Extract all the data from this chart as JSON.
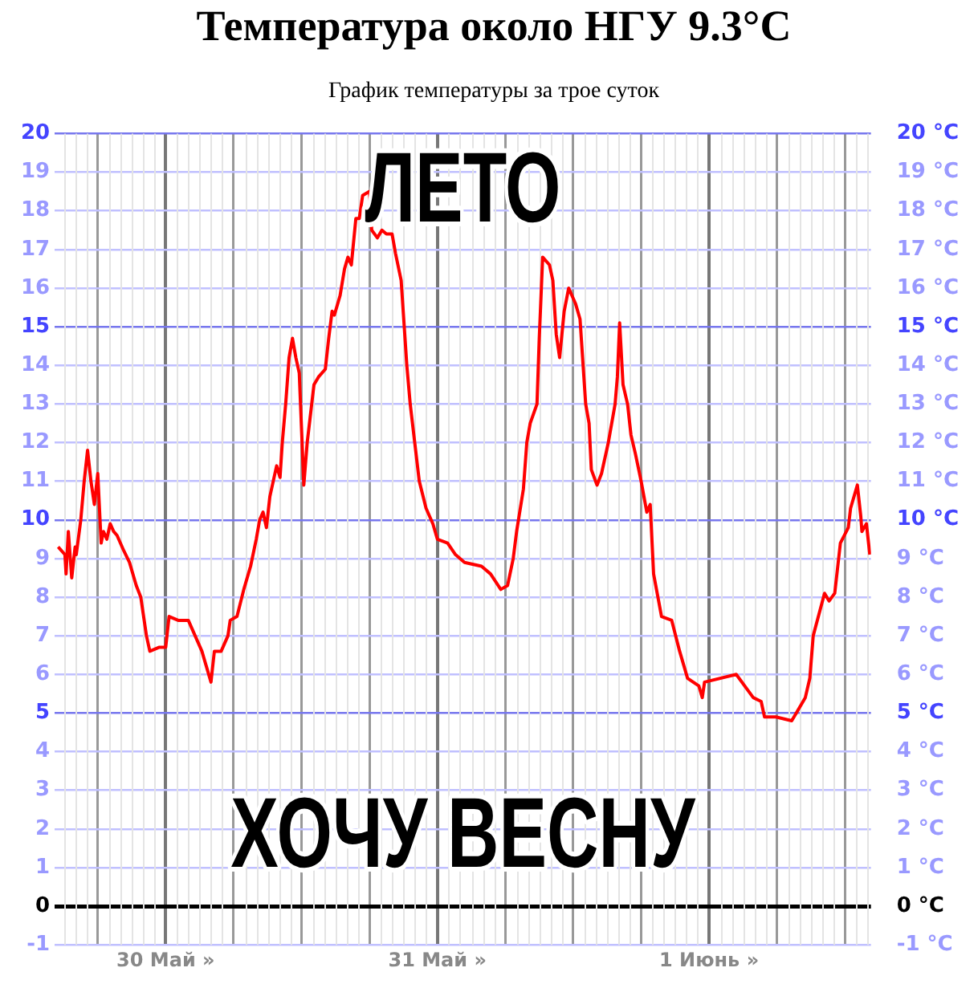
{
  "chart_data": {
    "type": "line",
    "title": "Температура около НГУ 9.3°C",
    "subtitle": "График температуры за трое суток",
    "annotations": [
      "ЛЕТО",
      "ХОЧУ ВЕСНУ"
    ],
    "x": [
      "--05-29T14:30",
      "--05-29T15:06",
      "--05-29T15:12",
      "--05-29T15:24",
      "--05-29T15:42",
      "--05-29T16:00",
      "--05-29T16:06",
      "--05-29T16:30",
      "--05-29T16:48",
      "--05-29T17:06",
      "--05-29T17:24",
      "--05-29T17:42",
      "--05-29T18:00",
      "--05-29T18:18",
      "--05-29T18:30",
      "--05-29T18:48",
      "--05-29T19:06",
      "--05-29T19:24",
      "--05-29T19:42",
      "--05-29T20:18",
      "--05-29T20:48",
      "--05-29T21:24",
      "--05-29T21:48",
      "--05-29T22:18",
      "--05-29T22:36",
      "--05-29T23:24",
      "--05-30T00:00",
      "--05-30T00:18",
      "--05-30T01:06",
      "--05-30T02:00",
      "--05-30T02:36",
      "--05-30T03:12",
      "--05-30T03:36",
      "--05-30T04:00",
      "--05-30T04:18",
      "--05-30T04:54",
      "--05-30T05:30",
      "--05-30T05:42",
      "--05-30T06:18",
      "--05-30T06:54",
      "--05-30T07:30",
      "--05-30T08:00",
      "--05-30T08:18",
      "--05-30T08:36",
      "--05-30T08:54",
      "--05-30T09:12",
      "--05-30T09:48",
      "--05-30T10:06",
      "--05-30T10:18",
      "--05-30T10:36",
      "--05-30T10:54",
      "--05-30T11:12",
      "--05-30T11:30",
      "--05-30T11:48",
      "--05-30T12:12",
      "--05-30T12:30",
      "--05-30T12:54",
      "--05-30T13:06",
      "--05-30T13:30",
      "--05-30T14:06",
      "--05-30T14:24",
      "--05-30T14:42",
      "--05-30T14:54",
      "--05-30T15:24",
      "--05-30T15:48",
      "--05-30T16:06",
      "--05-30T16:24",
      "--05-30T16:48",
      "--05-30T17:06",
      "--05-30T17:24",
      "--05-30T18:00",
      "--05-30T18:12",
      "--05-30T18:42",
      "--05-30T19:06",
      "--05-30T19:30",
      "--05-30T20:00",
      "--05-30T20:18",
      "--05-30T20:48",
      "--05-30T21:18",
      "--05-30T21:36",
      "--05-30T22:00",
      "--05-30T22:24",
      "--05-30T23:00",
      "--05-30T23:36",
      "--05-31T00:00",
      "--05-31T00:54",
      "--05-31T01:36",
      "--05-31T02:24",
      "--05-31T03:54",
      "--05-31T04:42",
      "--05-31T05:36",
      "--05-31T06:12",
      "--05-31T06:42",
      "--05-31T07:00",
      "--05-31T07:36",
      "--05-31T07:54",
      "--05-31T08:12",
      "--05-31T08:48",
      "--05-31T09:00",
      "--05-31T09:18",
      "--05-31T09:54",
      "--05-31T10:12",
      "--05-31T10:30",
      "--05-31T10:48",
      "--05-31T11:12",
      "--05-31T11:36",
      "--05-31T12:12",
      "--05-31T12:36",
      "--05-31T13:06",
      "--05-31T13:24",
      "--05-31T13:36",
      "--05-31T14:06",
      "--05-31T14:30",
      "--05-31T15:06",
      "--05-31T15:42",
      "--05-31T15:54",
      "--05-31T16:06",
      "--05-31T16:24",
      "--05-31T16:48",
      "--05-31T17:06",
      "--05-31T17:30",
      "--05-31T18:00",
      "--05-31T18:30",
      "--05-31T18:48",
      "--05-31T19:06",
      "--05-31T19:48",
      "--05-31T20:42",
      "--05-31T21:24",
      "--05-31T22:06",
      "--05-31T23:06",
      "--05-31T23:24",
      "--05-31T23:36",
      "--06-01T02:24",
      "--06-01T03:54",
      "--06-01T04:36",
      "--06-01T04:54",
      "--06-01T05:54",
      "--06-01T07:18",
      "--06-01T07:42",
      "--06-01T08:30",
      "--06-01T08:54",
      "--06-01T09:12",
      "--06-01T10:12",
      "--06-01T10:36",
      "--06-01T11:06",
      "--06-01T11:36",
      "--06-01T12:18",
      "--06-01T12:30",
      "--06-01T13:06",
      "--06-01T13:24",
      "--06-01T13:30",
      "--06-01T13:54",
      "--06-01T14:12"
    ],
    "series": [
      {
        "color": "#ff0000",
        "values": [
          9.3,
          9.1,
          8.6,
          9.7,
          8.5,
          9.3,
          9.1,
          10.0,
          11.0,
          11.8,
          11.0,
          10.4,
          11.2,
          9.4,
          9.7,
          9.5,
          9.9,
          9.7,
          9.6,
          9.2,
          8.9,
          8.3,
          8.0,
          7.0,
          6.6,
          6.7,
          6.7,
          7.5,
          7.4,
          7.4,
          7.0,
          6.6,
          6.2,
          5.8,
          6.6,
          6.6,
          7.0,
          7.4,
          7.5,
          8.2,
          8.8,
          9.5,
          10.0,
          10.2,
          9.8,
          10.6,
          11.4,
          11.1,
          12.0,
          13.0,
          14.2,
          14.7,
          14.2,
          13.8,
          10.9,
          12.0,
          13.0,
          13.5,
          13.7,
          13.9,
          14.7,
          15.4,
          15.3,
          15.8,
          16.5,
          16.8,
          16.6,
          17.8,
          17.8,
          18.4,
          18.5,
          17.5,
          17.3,
          17.5,
          17.4,
          17.4,
          16.9,
          16.2,
          14.0,
          13.0,
          12.0,
          11.0,
          10.3,
          9.9,
          9.5,
          9.4,
          9.1,
          8.9,
          8.8,
          8.6,
          8.2,
          8.3,
          9.0,
          9.7,
          10.8,
          12.0,
          12.5,
          13.0,
          14.7,
          16.8,
          16.6,
          16.2,
          14.8,
          14.2,
          15.4,
          16.0,
          15.6,
          15.2,
          13.0,
          12.5,
          11.3,
          10.9,
          11.2,
          12.0,
          13.0,
          13.7,
          15.1,
          13.5,
          13.0,
          12.2,
          11.7,
          11.0,
          10.2,
          10.4,
          8.6,
          7.5,
          7.4,
          6.6,
          5.9,
          5.7,
          5.4,
          5.8,
          6.0,
          5.4,
          5.3,
          4.9,
          4.9,
          4.8,
          5.0,
          5.4,
          5.9,
          7.0,
          8.1,
          7.9,
          8.1,
          9.4,
          9.8,
          10.3,
          10.9,
          10.1,
          9.7,
          9.9,
          9.1
        ]
      }
    ],
    "xlim": [
      "--05-29T14:12",
      "--06-01T14:18"
    ],
    "xticks": [
      {
        "value": "--05-29T18:00",
        "label": null
      },
      {
        "value": "--05-30",
        "label": "30 Май »"
      },
      {
        "value": "--05-30T06:00",
        "label": null
      },
      {
        "value": "--05-30T12:00",
        "label": null
      },
      {
        "value": "--05-30T18:00",
        "label": null
      },
      {
        "value": "--05-31",
        "label": "31 Май »"
      },
      {
        "value": "--05-31T06:00",
        "label": null
      },
      {
        "value": "--05-31T12:00",
        "label": null
      },
      {
        "value": "--05-31T18:00",
        "label": null
      },
      {
        "value": "--06-01",
        "label": "1 Июнь »"
      },
      {
        "value": "--06-01T06:00",
        "label": null
      },
      {
        "value": "--06-01T12:00",
        "label": null
      }
    ],
    "ylim": [
      -1,
      20
    ],
    "yticks": [
      -1,
      0,
      1,
      2,
      3,
      4,
      5,
      6,
      7,
      8,
      9,
      10,
      11,
      12,
      13,
      14,
      15,
      16,
      17,
      18,
      19,
      20
    ],
    "y2lim": [
      -1,
      20
    ],
    "y2ticks": [
      {
        "value": -1,
        "label": "-1 °C"
      },
      {
        "value": 0,
        "label": "0 °C"
      },
      {
        "value": 1,
        "label": "1 °C"
      },
      {
        "value": 2,
        "label": "2 °C"
      },
      {
        "value": 3,
        "label": "3 °C"
      },
      {
        "value": 4,
        "label": "4 °C"
      },
      {
        "value": 5,
        "label": "5 °C"
      },
      {
        "value": 6,
        "label": "6 °C"
      },
      {
        "value": 7,
        "label": "7 °C"
      },
      {
        "value": 8,
        "label": "8 °C"
      },
      {
        "value": 9,
        "label": "9 °C"
      },
      {
        "value": 10,
        "label": "10 °C"
      },
      {
        "value": 11,
        "label": "11 °C"
      },
      {
        "value": 12,
        "label": "12 °C"
      },
      {
        "value": 13,
        "label": "13 °C"
      },
      {
        "value": 14,
        "label": "14 °C"
      },
      {
        "value": 15,
        "label": "15 °C"
      },
      {
        "value": 16,
        "label": "16 °C"
      },
      {
        "value": 17,
        "label": "17 °C"
      },
      {
        "value": 18,
        "label": "18 °C"
      },
      {
        "value": 19,
        "label": "19 °C"
      },
      {
        "value": 20,
        "label": "20 °C"
      }
    ],
    "grid": true,
    "marker": "none"
  }
}
